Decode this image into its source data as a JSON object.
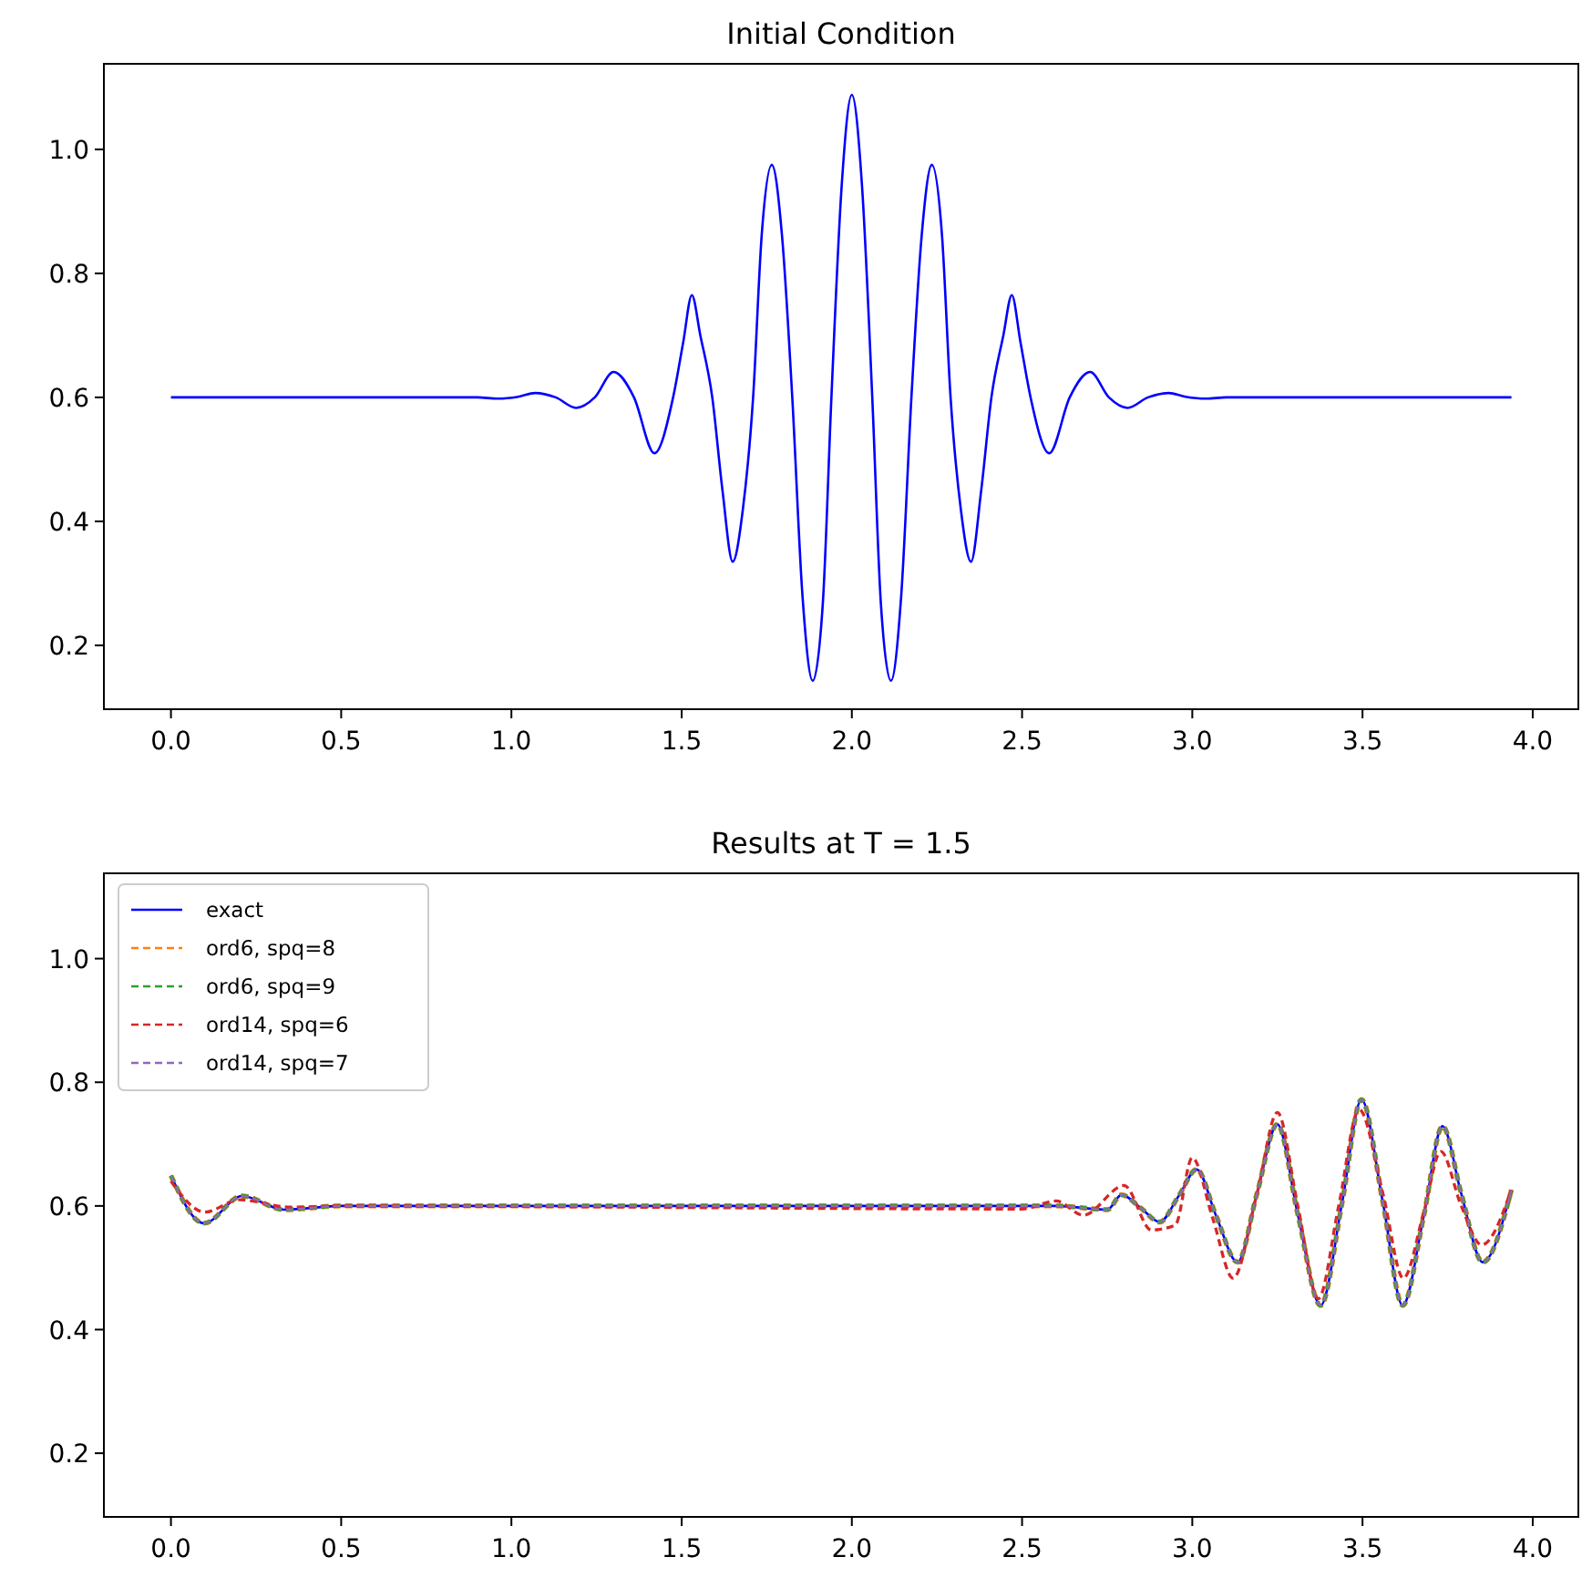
{
  "chart_data": [
    {
      "type": "line",
      "title": "Initial Condition",
      "xlim": [
        -0.197,
        4.134
      ],
      "ylim": [
        0.097,
        1.138
      ],
      "xticks": [
        {
          "value": 0,
          "label": "0.0"
        },
        {
          "value": 0.5,
          "label": "0.5"
        },
        {
          "value": 1,
          "label": "1.0"
        },
        {
          "value": 1.5,
          "label": "1.5"
        },
        {
          "value": 2,
          "label": "2.0"
        },
        {
          "value": 2.5,
          "label": "2.5"
        },
        {
          "value": 3,
          "label": "3.0"
        },
        {
          "value": 3.5,
          "label": "3.5"
        },
        {
          "value": 4,
          "label": "4.0"
        }
      ],
      "yticks": [
        {
          "value": 0.2,
          "label": "0.2"
        },
        {
          "value": 0.4,
          "label": "0.4"
        },
        {
          "value": 0.6,
          "label": "0.6"
        },
        {
          "value": 0.8,
          "label": "0.8"
        },
        {
          "value": 1,
          "label": "1.0"
        }
      ],
      "legend": false,
      "line_style": "solid",
      "series": [
        {
          "color": "#0000ff",
          "x": [
            0,
            0.5,
            0.9,
            0.96,
            1.02,
            1.07,
            1.13,
            1.19,
            1.245,
            1.3,
            1.36,
            1.42,
            1.475,
            1.505,
            1.53,
            1.555,
            1.59,
            1.62,
            1.65,
            1.68,
            1.71,
            1.735,
            1.765,
            1.795,
            1.825,
            1.855,
            1.885,
            1.915,
            1.94,
            1.97,
            2.0,
            2.03,
            2.06,
            2.085,
            2.115,
            2.145,
            2.175,
            2.205,
            2.235,
            2.265,
            2.29,
            2.32,
            2.35,
            2.38,
            2.41,
            2.445,
            2.47,
            2.495,
            2.525,
            2.58,
            2.64,
            2.7,
            2.755,
            2.81,
            2.87,
            2.93,
            2.98,
            3.04,
            3.1,
            3.5,
            3.9375
          ],
          "values": [
            0.6,
            0.6,
            0.6,
            0.598,
            0.601,
            0.607,
            0.6,
            0.583,
            0.6,
            0.641,
            0.6,
            0.51,
            0.6,
            0.69,
            0.765,
            0.7,
            0.6,
            0.45,
            0.335,
            0.42,
            0.6,
            0.86,
            0.975,
            0.86,
            0.6,
            0.28,
            0.143,
            0.27,
            0.6,
            0.94,
            1.088,
            0.94,
            0.6,
            0.27,
            0.143,
            0.28,
            0.6,
            0.86,
            0.975,
            0.86,
            0.6,
            0.42,
            0.335,
            0.45,
            0.6,
            0.7,
            0.765,
            0.69,
            0.6,
            0.51,
            0.6,
            0.641,
            0.6,
            0.583,
            0.6,
            0.607,
            0.601,
            0.598,
            0.6,
            0.6,
            0.6
          ]
        }
      ]
    },
    {
      "type": "line",
      "title": "Results at T = 1.5",
      "xlim": [
        -0.197,
        4.134
      ],
      "ylim": [
        0.097,
        1.138
      ],
      "xticks": [
        {
          "value": 0,
          "label": "0.0"
        },
        {
          "value": 0.5,
          "label": "0.5"
        },
        {
          "value": 1,
          "label": "1.0"
        },
        {
          "value": 1.5,
          "label": "1.5"
        },
        {
          "value": 2,
          "label": "2.0"
        },
        {
          "value": 2.5,
          "label": "2.5"
        },
        {
          "value": 3,
          "label": "3.0"
        },
        {
          "value": 3.5,
          "label": "3.5"
        },
        {
          "value": 4,
          "label": "4.0"
        }
      ],
      "yticks": [
        {
          "value": 0.2,
          "label": "0.2"
        },
        {
          "value": 0.4,
          "label": "0.4"
        },
        {
          "value": 0.6,
          "label": "0.6"
        },
        {
          "value": 0.8,
          "label": "0.8"
        },
        {
          "value": 1,
          "label": "1.0"
        }
      ],
      "legend": "top left",
      "series": [
        {
          "name": "exact",
          "color": "#0000ff",
          "line_style": "solid",
          "x": [
            0,
            0.097,
            0.209,
            0.332,
            0.5,
            2.6,
            2.751,
            2.792,
            2.85,
            2.904,
            2.96,
            3.013,
            3.07,
            3.133,
            3.19,
            3.25,
            3.31,
            3.377,
            3.44,
            3.497,
            3.56,
            3.618,
            3.68,
            3.735,
            3.79,
            3.853,
            3.9375
          ],
          "values": [
            0.649,
            0.572,
            0.616,
            0.594,
            0.6,
            0.6,
            0.594,
            0.618,
            0.596,
            0.574,
            0.616,
            0.659,
            0.584,
            0.509,
            0.62,
            0.732,
            0.586,
            0.439,
            0.605,
            0.772,
            0.605,
            0.439,
            0.584,
            0.729,
            0.62,
            0.509,
            0.626
          ]
        },
        {
          "name": "ord6, spq=8",
          "color": "#ff7f0e",
          "line_style": "dashed",
          "x": [
            0,
            0.097,
            0.209,
            0.332,
            0.5,
            2.6,
            2.751,
            2.792,
            2.85,
            2.904,
            2.96,
            3.013,
            3.07,
            3.133,
            3.19,
            3.25,
            3.31,
            3.377,
            3.44,
            3.497,
            3.56,
            3.618,
            3.68,
            3.735,
            3.79,
            3.853,
            3.9375
          ],
          "values": [
            0.649,
            0.572,
            0.616,
            0.594,
            0.6,
            0.6,
            0.594,
            0.618,
            0.596,
            0.574,
            0.616,
            0.659,
            0.584,
            0.509,
            0.62,
            0.732,
            0.586,
            0.439,
            0.605,
            0.772,
            0.605,
            0.439,
            0.584,
            0.729,
            0.62,
            0.509,
            0.626
          ]
        },
        {
          "name": "ord6, spq=9",
          "color": "#2ca02c",
          "line_style": "dashed",
          "x": [
            0,
            0.097,
            0.209,
            0.332,
            0.5,
            2.6,
            2.751,
            2.792,
            2.85,
            2.904,
            2.96,
            3.013,
            3.07,
            3.133,
            3.19,
            3.25,
            3.31,
            3.377,
            3.44,
            3.497,
            3.56,
            3.618,
            3.68,
            3.735,
            3.79,
            3.853,
            3.9375
          ],
          "values": [
            0.649,
            0.572,
            0.616,
            0.594,
            0.6,
            0.6,
            0.594,
            0.618,
            0.596,
            0.574,
            0.616,
            0.659,
            0.584,
            0.509,
            0.62,
            0.732,
            0.586,
            0.439,
            0.605,
            0.772,
            0.605,
            0.439,
            0.584,
            0.729,
            0.62,
            0.509,
            0.626
          ]
        },
        {
          "name": "ord14, spq=6",
          "color": "#d62728",
          "line_style": "dashed",
          "x": [
            0,
            0.1,
            0.2,
            0.35,
            0.5,
            2.5,
            2.6,
            2.68,
            2.8,
            2.88,
            2.95,
            3.0,
            3.06,
            3.12,
            3.19,
            3.25,
            3.31,
            3.37,
            3.43,
            3.49,
            3.56,
            3.62,
            3.68,
            3.73,
            3.79,
            3.85,
            3.9375
          ],
          "values": [
            0.64,
            0.59,
            0.61,
            0.598,
            0.6,
            0.595,
            0.608,
            0.585,
            0.633,
            0.561,
            0.569,
            0.678,
            0.58,
            0.483,
            0.62,
            0.751,
            0.6,
            0.45,
            0.6,
            0.756,
            0.62,
            0.483,
            0.59,
            0.688,
            0.6,
            0.537,
            0.626
          ]
        },
        {
          "name": "ord14, spq=7",
          "color": "#9467bd",
          "line_style": "dashed",
          "x": [
            0,
            0.097,
            0.209,
            0.332,
            0.5,
            2.6,
            2.751,
            2.792,
            2.85,
            2.904,
            2.96,
            3.013,
            3.07,
            3.133,
            3.19,
            3.25,
            3.31,
            3.377,
            3.44,
            3.497,
            3.56,
            3.618,
            3.68,
            3.735,
            3.79,
            3.853,
            3.9375
          ],
          "values": [
            0.649,
            0.572,
            0.616,
            0.594,
            0.6,
            0.6,
            0.594,
            0.618,
            0.596,
            0.574,
            0.616,
            0.659,
            0.584,
            0.509,
            0.62,
            0.732,
            0.586,
            0.439,
            0.605,
            0.772,
            0.605,
            0.439,
            0.584,
            0.729,
            0.62,
            0.509,
            0.626
          ]
        }
      ]
    }
  ]
}
